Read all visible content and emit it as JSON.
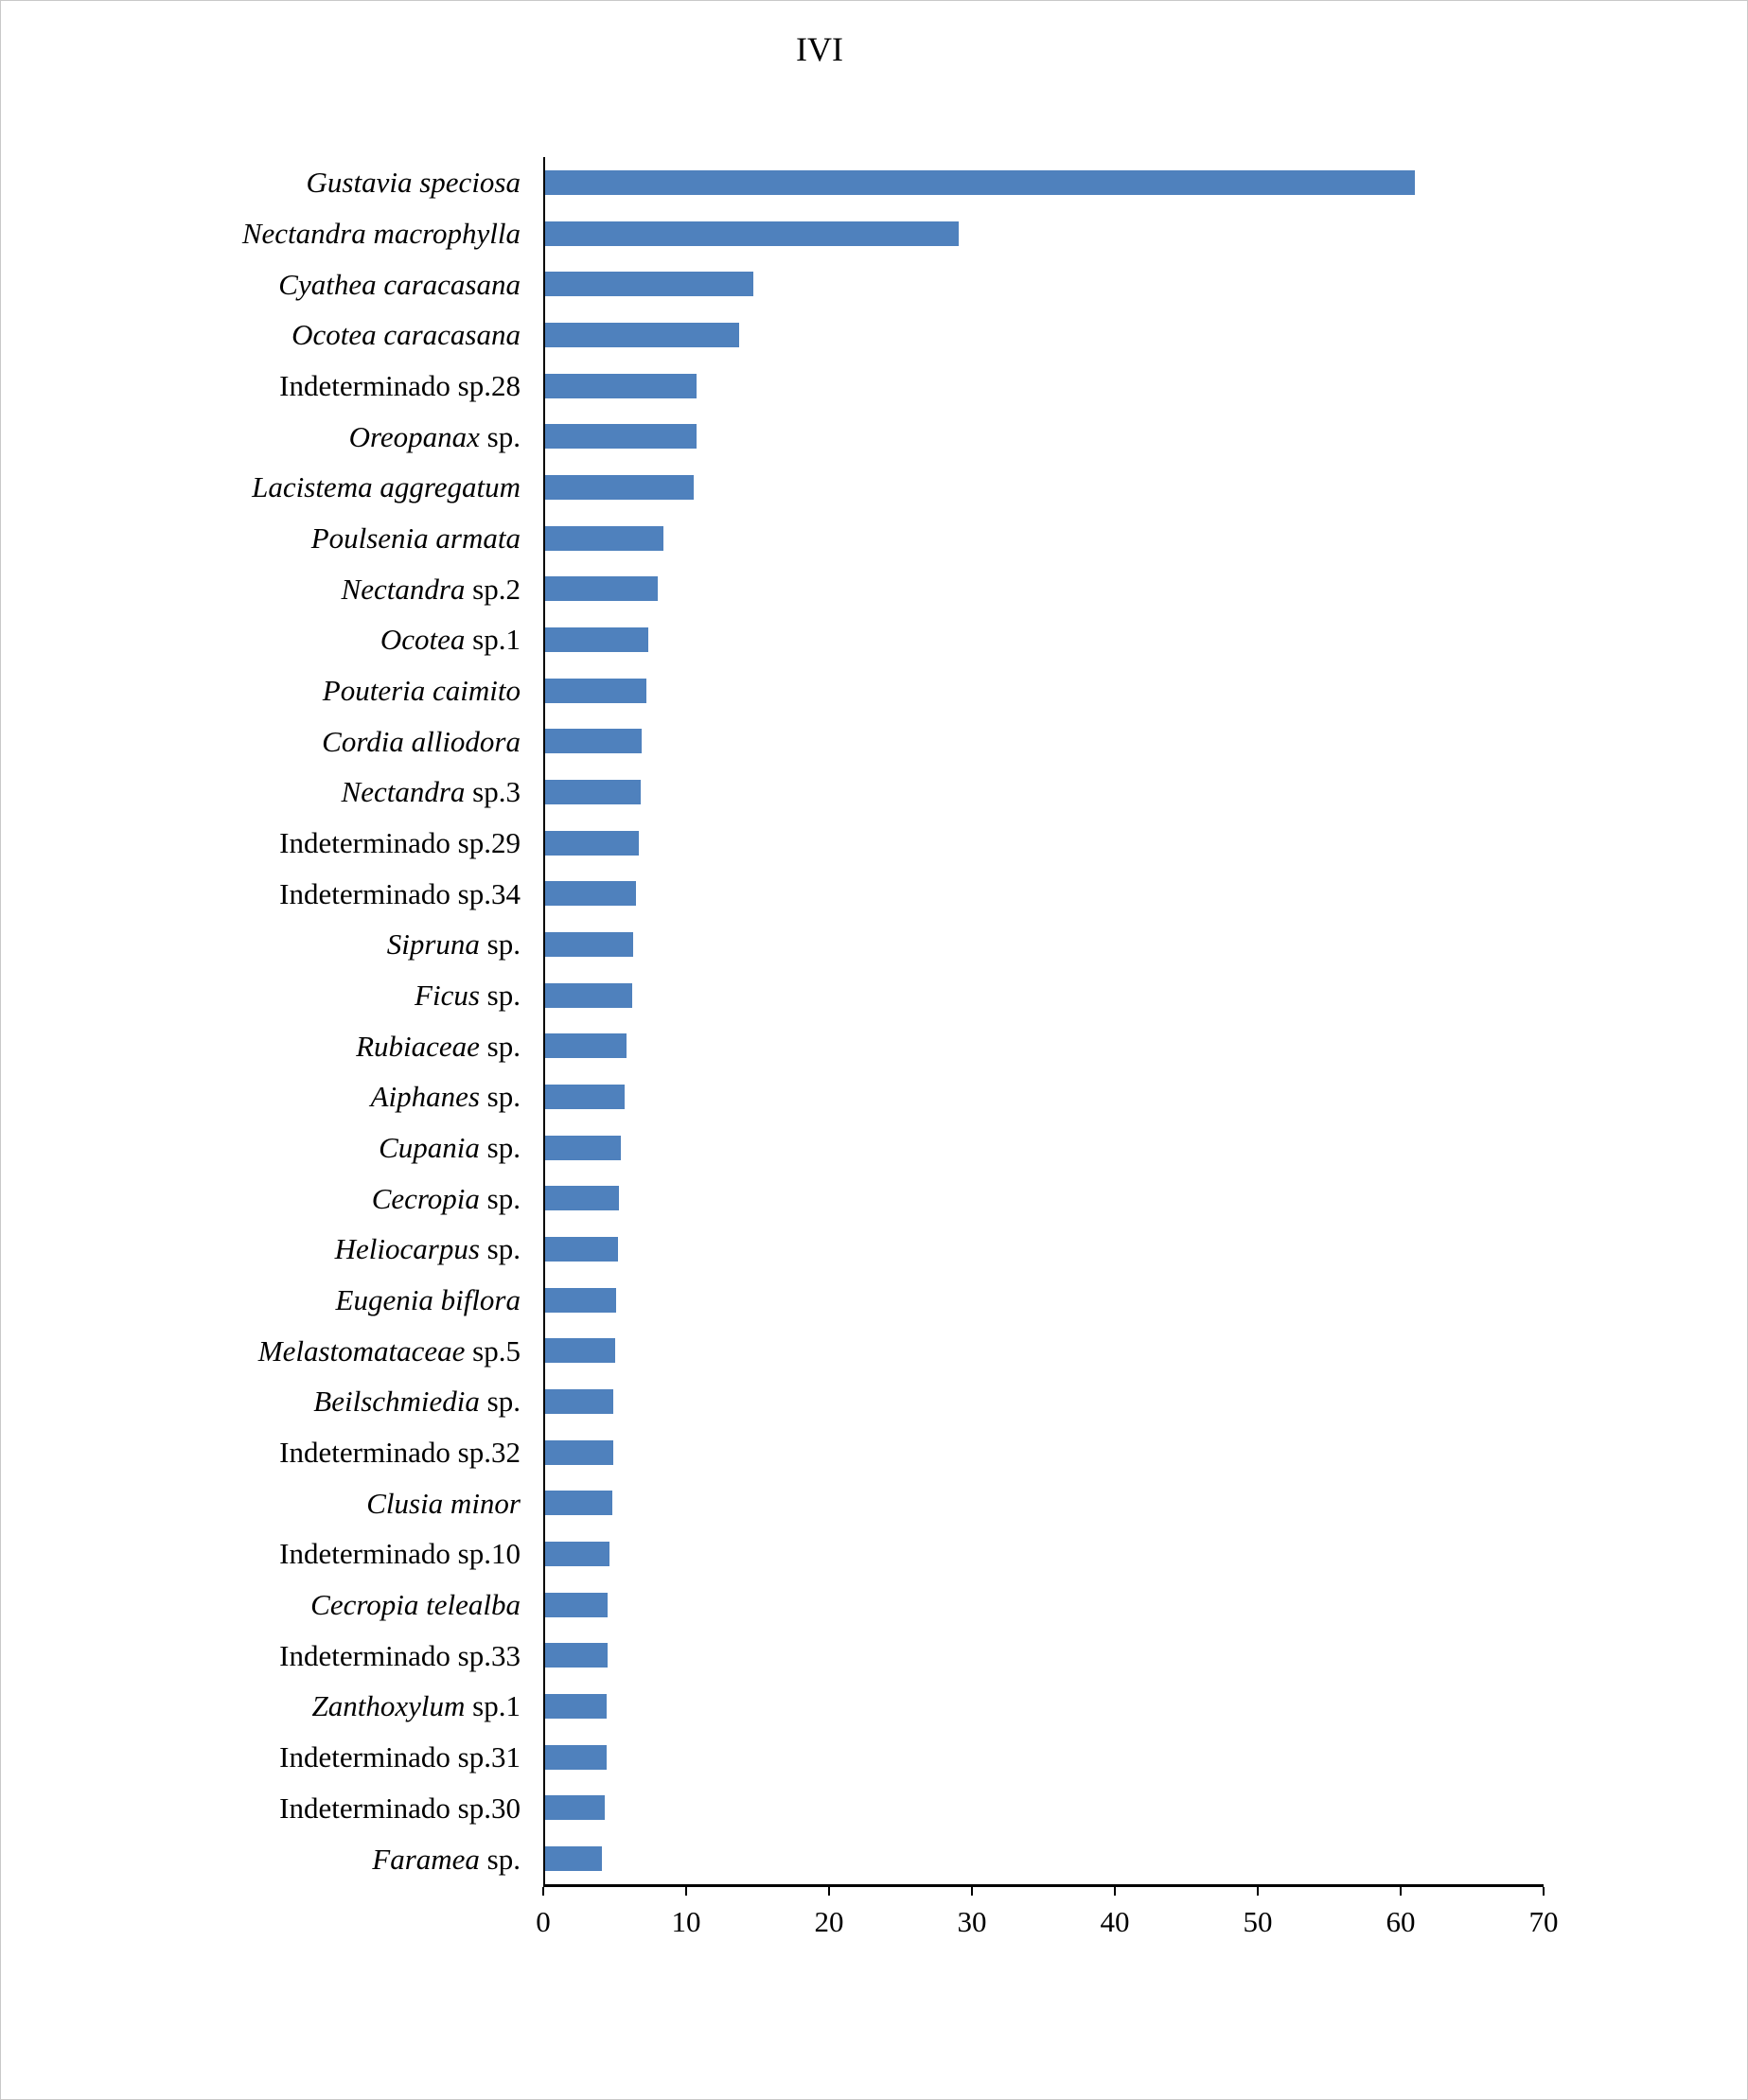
{
  "chart_data": {
    "type": "bar",
    "orientation": "horizontal",
    "title": "IVI",
    "xlabel": "",
    "ylabel": "",
    "xlim": [
      0,
      70
    ],
    "x_ticks": [
      0,
      10,
      20,
      30,
      40,
      50,
      60,
      70
    ],
    "bar_color": "#4F81BD",
    "axis_color": "#000000",
    "grid": false,
    "legend": false,
    "categories": [
      {
        "italic": "Gustavia speciosa",
        "plain": "",
        "value": 61
      },
      {
        "italic": "Nectandra macrophylla",
        "plain": "",
        "value": 29
      },
      {
        "italic": "Cyathea caracasana",
        "plain": "",
        "value": 14.6
      },
      {
        "italic": "Ocotea caracasana",
        "plain": "",
        "value": 13.6
      },
      {
        "italic": "",
        "plain": "Indeterminado sp.28",
        "value": 10.6
      },
      {
        "italic": "Oreopanax",
        "plain": " sp.",
        "value": 10.6
      },
      {
        "italic": "Lacistema aggregatum",
        "plain": "",
        "value": 10.4
      },
      {
        "italic": "Poulsenia armata",
        "plain": "",
        "value": 8.3
      },
      {
        "italic": "Nectandra",
        "plain": " sp.2",
        "value": 7.9
      },
      {
        "italic": "Ocotea",
        "plain": " sp.1",
        "value": 7.2
      },
      {
        "italic": "Pouteria caimito",
        "plain": "",
        "value": 7.1
      },
      {
        "italic": "Cordia alliodora",
        "plain": "",
        "value": 6.8
      },
      {
        "italic": "Nectandra",
        "plain": " sp.3",
        "value": 6.7
      },
      {
        "italic": "",
        "plain": "Indeterminado sp.29",
        "value": 6.6
      },
      {
        "italic": "",
        "plain": "Indeterminado sp.34",
        "value": 6.4
      },
      {
        "italic": "Sipruna",
        "plain": " sp.",
        "value": 6.2
      },
      {
        "italic": "Ficus",
        "plain": " sp.",
        "value": 6.1
      },
      {
        "italic": "Rubiaceae",
        "plain": " sp.",
        "value": 5.7
      },
      {
        "italic": "Aiphanes",
        "plain": " sp.",
        "value": 5.6
      },
      {
        "italic": "Cupania",
        "plain": " sp.",
        "value": 5.3
      },
      {
        "italic": "Cecropia",
        "plain": " sp.",
        "value": 5.2
      },
      {
        "italic": "Heliocarpus",
        "plain": " sp.",
        "value": 5.1
      },
      {
        "italic": "Eugenia biflora",
        "plain": "",
        "value": 5.0
      },
      {
        "italic": "Melastomataceae",
        "plain": " sp.5",
        "value": 4.9
      },
      {
        "italic": "Beilschmiedia",
        "plain": " sp.",
        "value": 4.8
      },
      {
        "italic": "",
        "plain": "Indeterminado sp.32",
        "value": 4.8
      },
      {
        "italic": "Clusia minor",
        "plain": "",
        "value": 4.7
      },
      {
        "italic": "",
        "plain": "Indeterminado sp.10",
        "value": 4.5
      },
      {
        "italic": "Cecropia telealba",
        "plain": "",
        "value": 4.4
      },
      {
        "italic": "",
        "plain": "Indeterminado sp.33",
        "value": 4.4
      },
      {
        "italic": "Zanthoxylum",
        "plain": " sp.1",
        "value": 4.3
      },
      {
        "italic": "",
        "plain": "Indeterminado sp.31",
        "value": 4.3
      },
      {
        "italic": "",
        "plain": "Indeterminado sp.30",
        "value": 4.2
      },
      {
        "italic": "Faramea",
        "plain": " sp.",
        "value": 4.0
      }
    ]
  }
}
